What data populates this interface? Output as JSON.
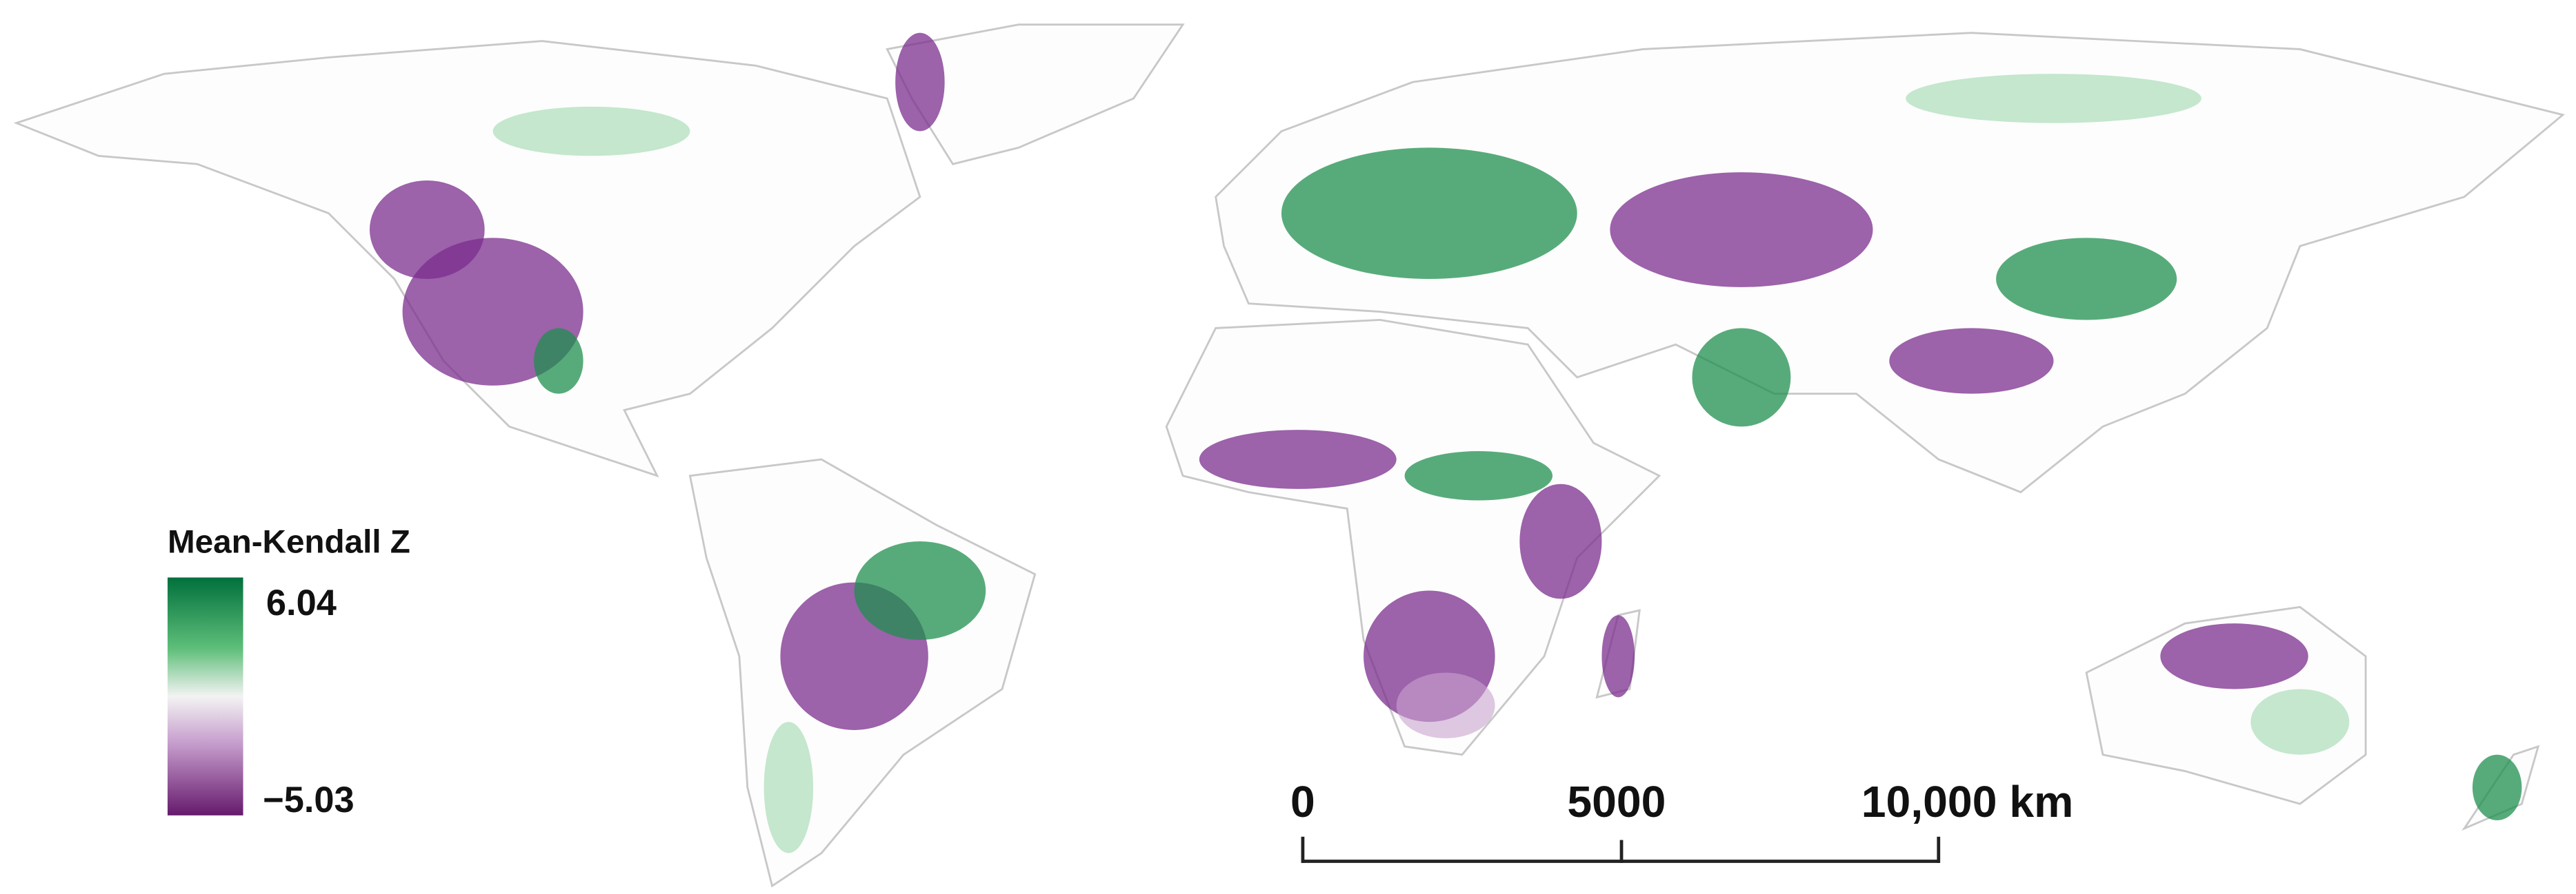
{
  "legend": {
    "title": "Mean-Kendall Z",
    "max": "6.04",
    "min": "−5.03"
  },
  "scale_bar": {
    "labels": [
      "0",
      "5000",
      "10,000 km"
    ]
  }
}
